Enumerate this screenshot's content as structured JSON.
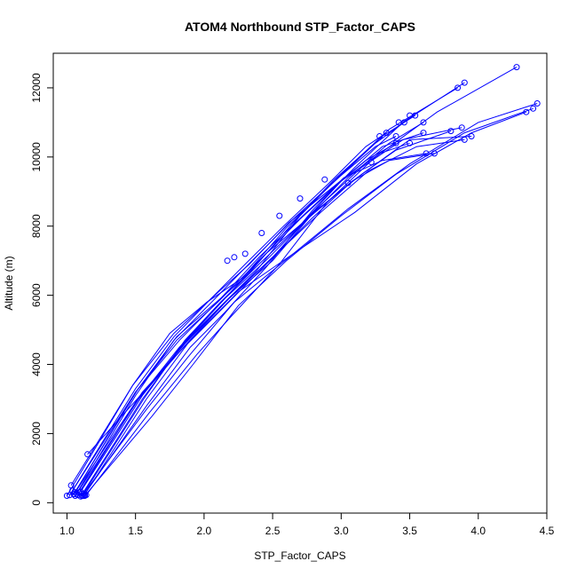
{
  "chart_data": {
    "type": "scatter",
    "title": "ATOM4 Northbound STP_Factor_CAPS",
    "xlabel": "STP_Factor_CAPS",
    "ylabel": "Altitude (m)",
    "xlim": [
      0.9,
      4.5
    ],
    "ylim": [
      -300,
      13000
    ],
    "x_ticks": [
      1.0,
      1.5,
      2.0,
      2.5,
      3.0,
      3.5,
      4.0,
      4.5
    ],
    "x_tick_labels": [
      "1.0",
      "1.5",
      "2.0",
      "2.5",
      "3.0",
      "3.5",
      "4.0",
      "4.5"
    ],
    "y_ticks": [
      0,
      2000,
      4000,
      6000,
      8000,
      10000,
      12000
    ],
    "y_tick_labels": [
      "0",
      "2000",
      "4000",
      "6000",
      "8000",
      "10000",
      "12000"
    ],
    "grid": false,
    "legend": "none",
    "line_color": "#0000ff",
    "point_style": "open-circle",
    "series": [
      {
        "x": [
          1.0,
          1.48,
          1.75,
          2.02,
          2.28,
          2.6,
          2.9,
          3.25,
          3.46
        ],
        "y": [
          200,
          3400,
          4900,
          5800,
          6500,
          7950,
          9100,
          10400,
          11000
        ]
      },
      {
        "x": [
          1.05,
          1.52,
          1.8,
          2.06,
          2.32,
          2.65,
          2.95,
          3.3,
          3.54
        ],
        "y": [
          250,
          3300,
          4800,
          5700,
          6600,
          8100,
          9350,
          10600,
          11200
        ]
      },
      {
        "x": [
          1.1,
          1.55,
          1.85,
          2.1,
          2.38,
          2.7,
          3.0,
          3.35,
          3.85
        ],
        "y": [
          180,
          3000,
          4600,
          5600,
          6700,
          8300,
          9500,
          10800,
          12000
        ]
      },
      {
        "x": [
          1.12,
          1.58,
          1.9,
          2.15,
          2.45,
          2.8,
          3.1,
          3.45,
          3.9
        ],
        "y": [
          200,
          2800,
          4500,
          5500,
          6800,
          8500,
          9700,
          11000,
          12150
        ]
      },
      {
        "x": [
          1.14,
          1.6,
          1.95,
          2.2,
          2.55,
          2.9,
          3.25,
          3.7,
          4.28
        ],
        "y": [
          220,
          2600,
          4300,
          5400,
          6900,
          8700,
          10000,
          11300,
          12600
        ]
      },
      {
        "x": [
          1.08,
          1.5,
          1.85,
          2.18,
          2.5,
          2.8,
          3.15,
          3.5,
          3.95
        ],
        "y": [
          220,
          2900,
          4500,
          5900,
          7000,
          8400,
          9500,
          10500,
          10600
        ]
      },
      {
        "x": [
          1.13,
          1.62,
          1.92,
          2.25,
          2.6,
          3.0,
          3.4,
          3.9,
          4.4
        ],
        "y": [
          200,
          2500,
          4000,
          5700,
          7000,
          8300,
          9500,
          10700,
          11400
        ]
      },
      {
        "x": [
          1.11,
          1.58,
          1.88,
          2.22,
          2.62,
          3.05,
          3.5,
          4.0,
          4.43
        ],
        "y": [
          200,
          2700,
          4200,
          5800,
          7100,
          8500,
          9800,
          11000,
          11550
        ]
      },
      {
        "x": [
          1.06,
          1.55,
          1.9,
          2.25,
          2.65,
          3.1,
          3.55,
          3.95,
          4.35
        ],
        "y": [
          300,
          3200,
          4700,
          6100,
          7200,
          8400,
          9800,
          10700,
          11300
        ]
      },
      {
        "x": [
          1.02,
          1.5,
          1.82,
          2.12,
          2.4,
          2.72,
          3.02,
          3.3,
          3.62
        ],
        "y": [
          220,
          3200,
          4700,
          5900,
          7100,
          8300,
          9400,
          9900,
          10100
        ]
      },
      {
        "x": [
          1.07,
          1.54,
          1.86,
          2.18,
          2.5,
          2.85,
          3.2,
          3.55,
          3.9
        ],
        "y": [
          260,
          3100,
          4600,
          5900,
          7100,
          8400,
          9600,
          10300,
          10500
        ]
      },
      {
        "x": [
          1.09,
          1.52,
          1.82,
          2.15,
          2.45,
          2.78,
          3.08,
          3.35,
          3.68
        ],
        "y": [
          300,
          3000,
          4500,
          5900,
          7200,
          8300,
          9300,
          9900,
          10100
        ]
      },
      {
        "x": [
          1.04,
          1.5,
          1.78,
          2.05,
          2.33,
          2.62,
          2.9,
          3.18,
          3.4
        ],
        "y": [
          350,
          3300,
          4800,
          5900,
          6900,
          8100,
          9000,
          9900,
          10400
        ]
      },
      {
        "x": [
          1.12,
          1.56,
          1.86,
          2.12,
          2.4,
          2.72,
          3.0,
          3.28,
          3.5
        ],
        "y": [
          260,
          3000,
          4700,
          5800,
          6900,
          8100,
          9300,
          10100,
          10400
        ]
      },
      {
        "x": [
          1.03,
          1.48,
          1.78,
          2.05,
          2.3,
          2.58,
          2.9,
          3.18,
          3.33
        ],
        "y": [
          500,
          3400,
          4900,
          5900,
          6900,
          8000,
          9200,
          10300,
          10700
        ]
      },
      {
        "x": [
          1.15,
          1.58,
          1.9,
          2.18,
          2.5,
          2.82,
          3.15,
          3.45,
          3.88
        ],
        "y": [
          1400,
          3300,
          4800,
          5900,
          7100,
          8500,
          9700,
          10500,
          10850
        ]
      },
      {
        "x": [
          1.06,
          1.5,
          1.78,
          2.08,
          2.35,
          2.65,
          2.95,
          3.25,
          3.4
        ],
        "y": [
          200,
          3100,
          4700,
          5900,
          7000,
          8200,
          9300,
          10300,
          10600
        ]
      },
      {
        "x": [
          1.1,
          1.55,
          1.85,
          2.15,
          2.45,
          2.75,
          3.05,
          3.35,
          3.6
        ],
        "y": [
          320,
          3100,
          4600,
          5900,
          7000,
          8200,
          9400,
          10400,
          11000
        ]
      },
      {
        "x": [
          1.05,
          1.5,
          1.8,
          2.1,
          2.4,
          2.7,
          3.0,
          3.3,
          3.6
        ],
        "y": [
          250,
          3200,
          4700,
          5800,
          7000,
          8200,
          9300,
          10300,
          10700
        ]
      },
      {
        "x": [
          1.13,
          1.58,
          1.88,
          2.18,
          2.48,
          2.78,
          3.08,
          3.4,
          3.8
        ],
        "y": [
          240,
          3000,
          4600,
          5800,
          7000,
          8200,
          9300,
          10200,
          10750
        ]
      }
    ],
    "annotation_points": [
      {
        "x": 2.17,
        "y": 7000
      },
      {
        "x": 2.22,
        "y": 7100
      },
      {
        "x": 2.3,
        "y": 7200
      },
      {
        "x": 2.42,
        "y": 7800
      },
      {
        "x": 2.55,
        "y": 8300
      },
      {
        "x": 2.7,
        "y": 8800
      },
      {
        "x": 2.88,
        "y": 9350
      },
      {
        "x": 3.05,
        "y": 9250
      },
      {
        "x": 3.22,
        "y": 9850
      },
      {
        "x": 3.28,
        "y": 10600
      },
      {
        "x": 3.42,
        "y": 11000
      },
      {
        "x": 3.5,
        "y": 11200
      }
    ]
  }
}
